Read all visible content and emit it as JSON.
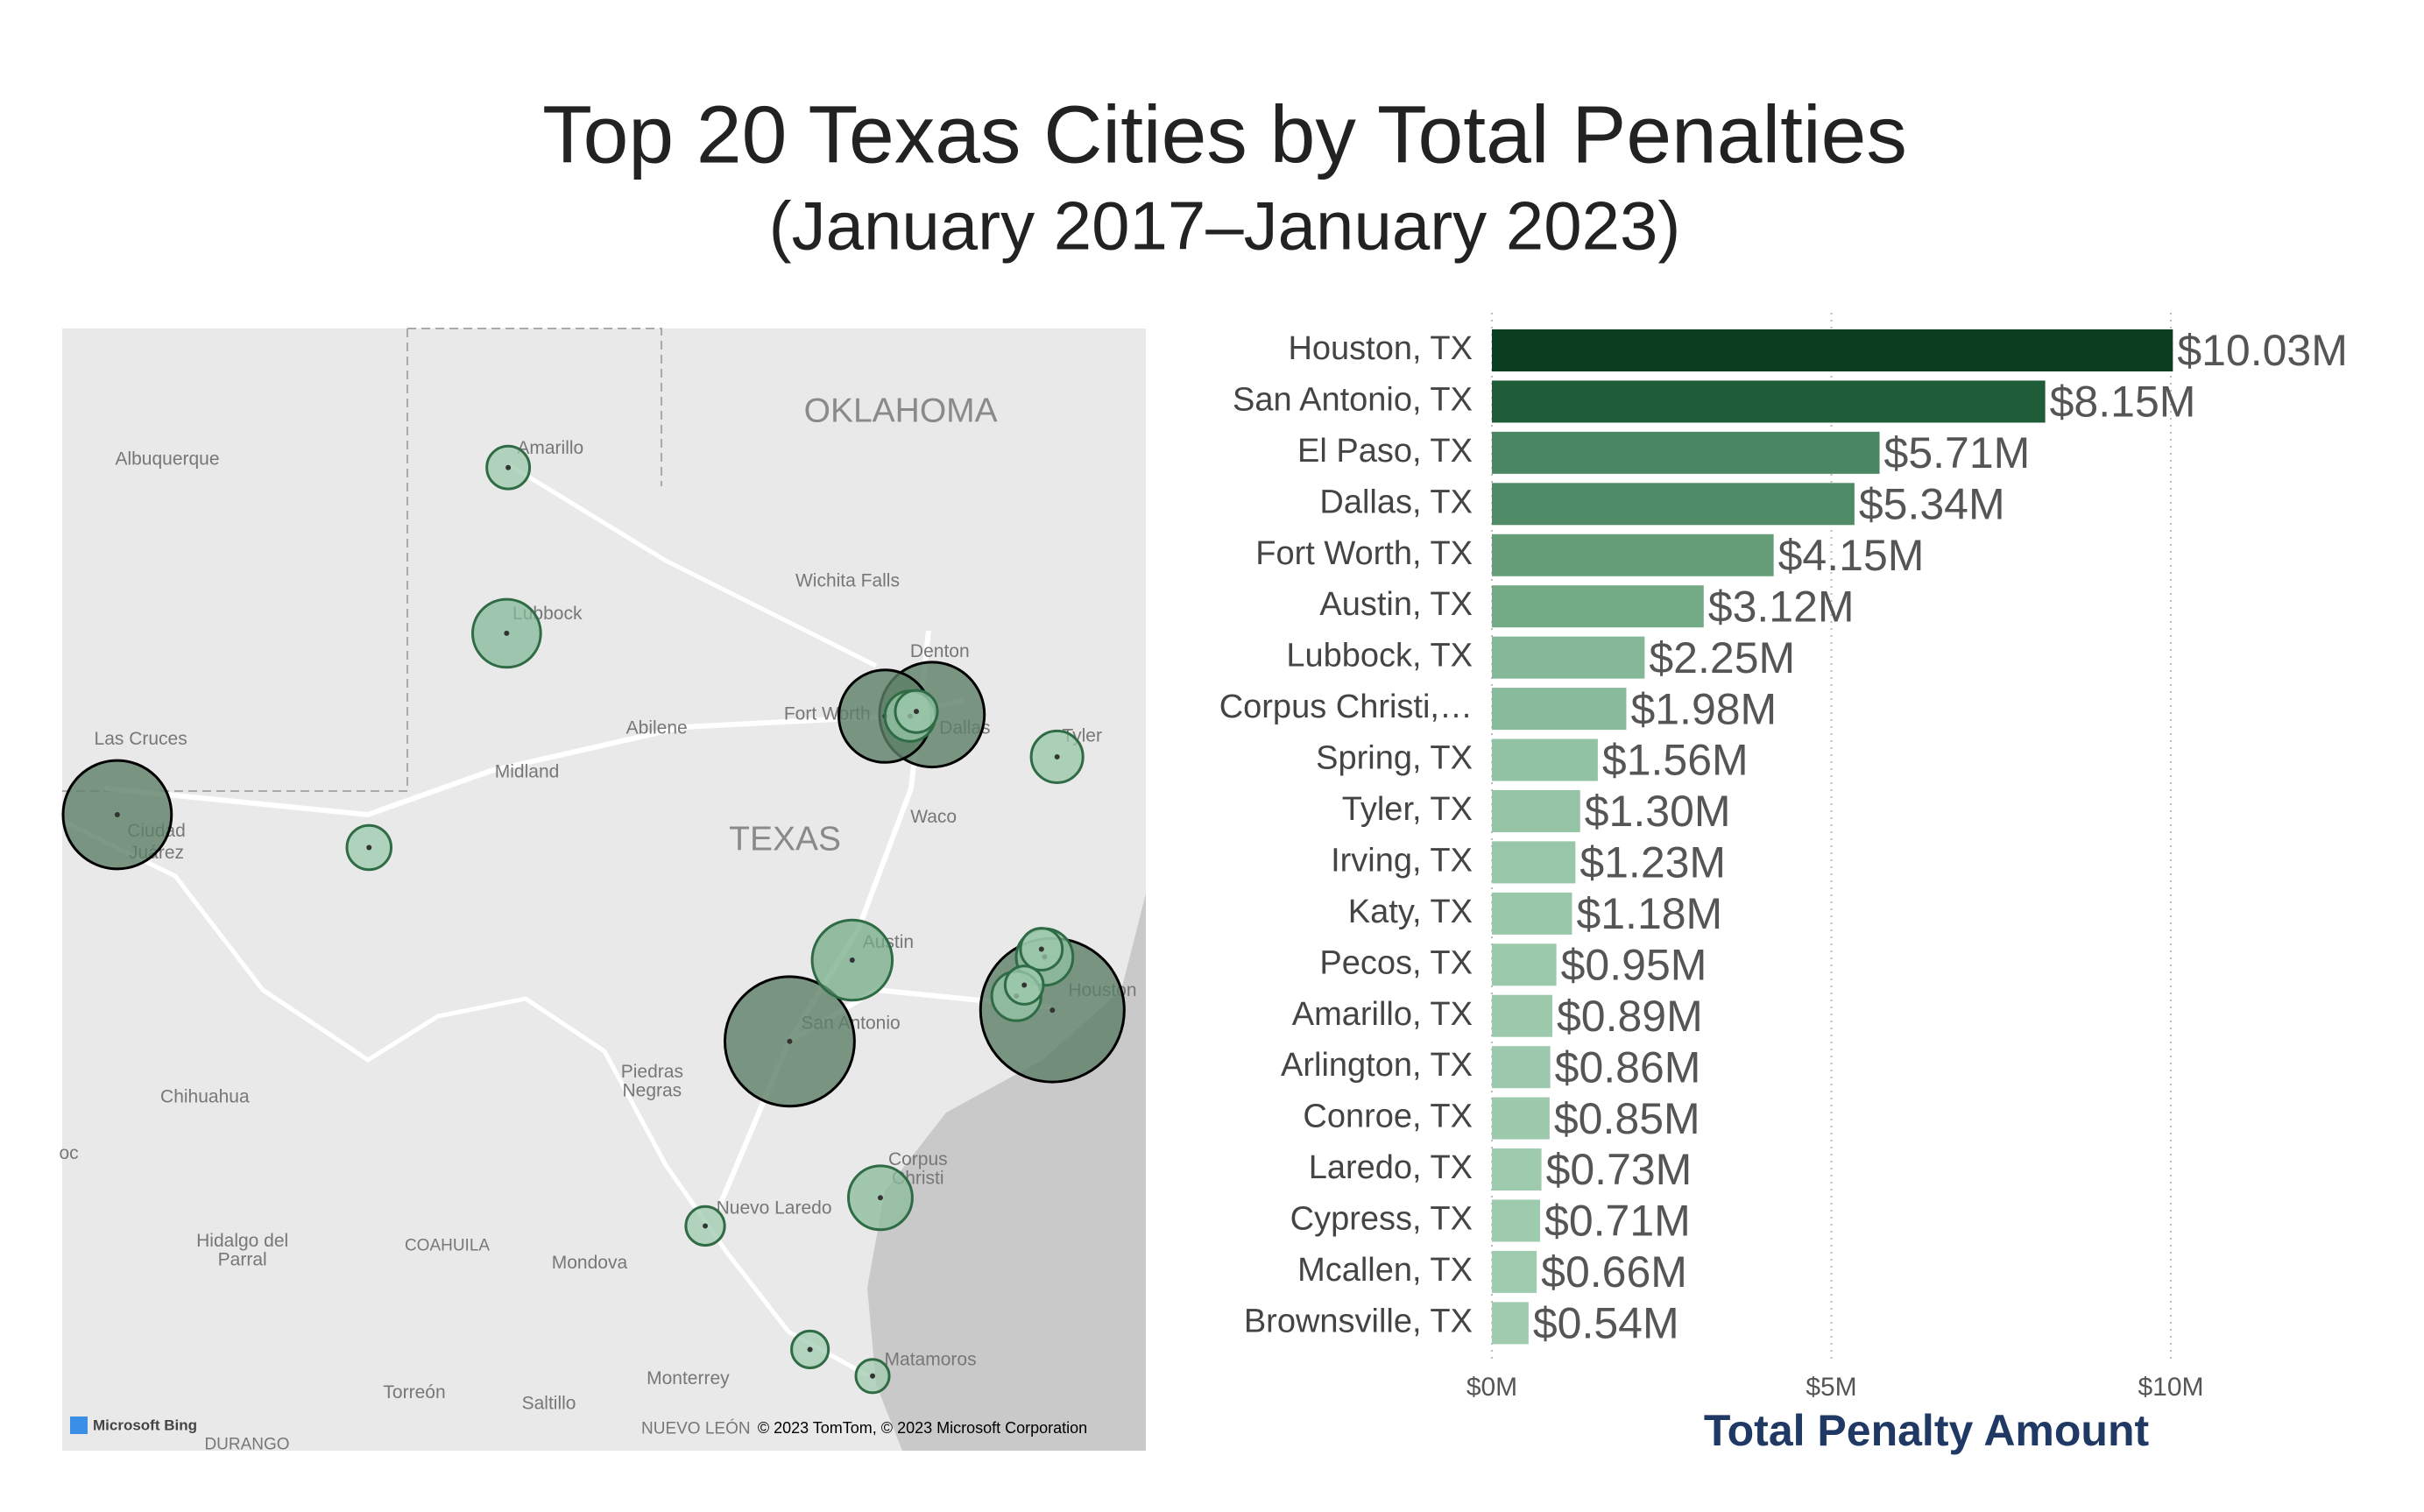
{
  "chart_data": {
    "type": "bar",
    "orientation": "horizontal",
    "title": "Top 20 Texas Cities by Total Penalties",
    "subtitle": "(January 2017–January 2023)",
    "x_label": "Total Penalty Amount",
    "categories": [
      "Houston, TX",
      "San Antonio, TX",
      "El Paso, TX",
      "Dallas, TX",
      "Fort Worth, TX",
      "Austin, TX",
      "Lubbock, TX",
      "Corpus Christi,…",
      "Spring, TX",
      "Tyler, TX",
      "Irving, TX",
      "Katy, TX",
      "Pecos, TX",
      "Amarillo, TX",
      "Arlington, TX",
      "Conroe, TX",
      "Laredo, TX",
      "Cypress, TX",
      "Mcallen, TX",
      "Brownsville, TX"
    ],
    "values": [
      10030000,
      8150000,
      5710000,
      5340000,
      4150000,
      3120000,
      2250000,
      1980000,
      1560000,
      1300000,
      1230000,
      1180000,
      950000,
      890000,
      860000,
      850000,
      730000,
      710000,
      660000,
      540000
    ],
    "value_labels": [
      "$10.03M",
      "$8.15M",
      "$5.71M",
      "$5.34M",
      "$4.15M",
      "$3.12M",
      "$2.25M",
      "$1.98M",
      "$1.56M",
      "$1.30M",
      "$1.23M",
      "$1.18M",
      "$0.95M",
      "$0.89M",
      "$0.86M",
      "$0.85M",
      "$0.73M",
      "$0.71M",
      "$0.66M",
      "$0.54M"
    ],
    "colors": [
      "#0b3d20",
      "#1f5c38",
      "#4a8661",
      "#4f8b66",
      "#649d78",
      "#74ab87",
      "#84b898",
      "#88bb9b",
      "#91c2a3",
      "#95c5a6",
      "#97c6a8",
      "#98c7a9",
      "#9bc9ac",
      "#9cc9ac",
      "#9cc9ad",
      "#9dcaad",
      "#9ecaae",
      "#9ecaae",
      "#9fcbaf",
      "#a0cbaf"
    ],
    "xlim": [
      0,
      10000000
    ],
    "xticks": [
      {
        "value": 0,
        "label": "$0M"
      },
      {
        "value": 5000000,
        "label": "$5M"
      },
      {
        "value": 10000000,
        "label": "$10M"
      }
    ],
    "grid": true
  },
  "map": {
    "labels": [
      "OKLAHOMA",
      "Albuquerque",
      "Amarillo",
      "Lubbock",
      "Wichita Falls",
      "Denton",
      "Fort Worth",
      "Dallas",
      "Tyler",
      "Las Cruces",
      "Abilene",
      "Midland",
      "TEXAS",
      "Waco",
      "Ciudad",
      "Juárez",
      "Austin",
      "Houston",
      "San Antonio",
      "Piedras",
      "Negras",
      "Chihuahua",
      "Corpus",
      "Christi",
      "Nuevo Laredo",
      "Hidalgo del",
      "Parral",
      "COAHUILA",
      "Mondova",
      "Matamoros",
      "Monterrey",
      "Torreón",
      "Saltillo",
      "NUEVO LEÓN",
      "DURANGO",
      "oc"
    ],
    "logo": "Microsoft Bing",
    "copyright": "© 2023 TomTom, © 2023 Microsoft Corporation"
  }
}
